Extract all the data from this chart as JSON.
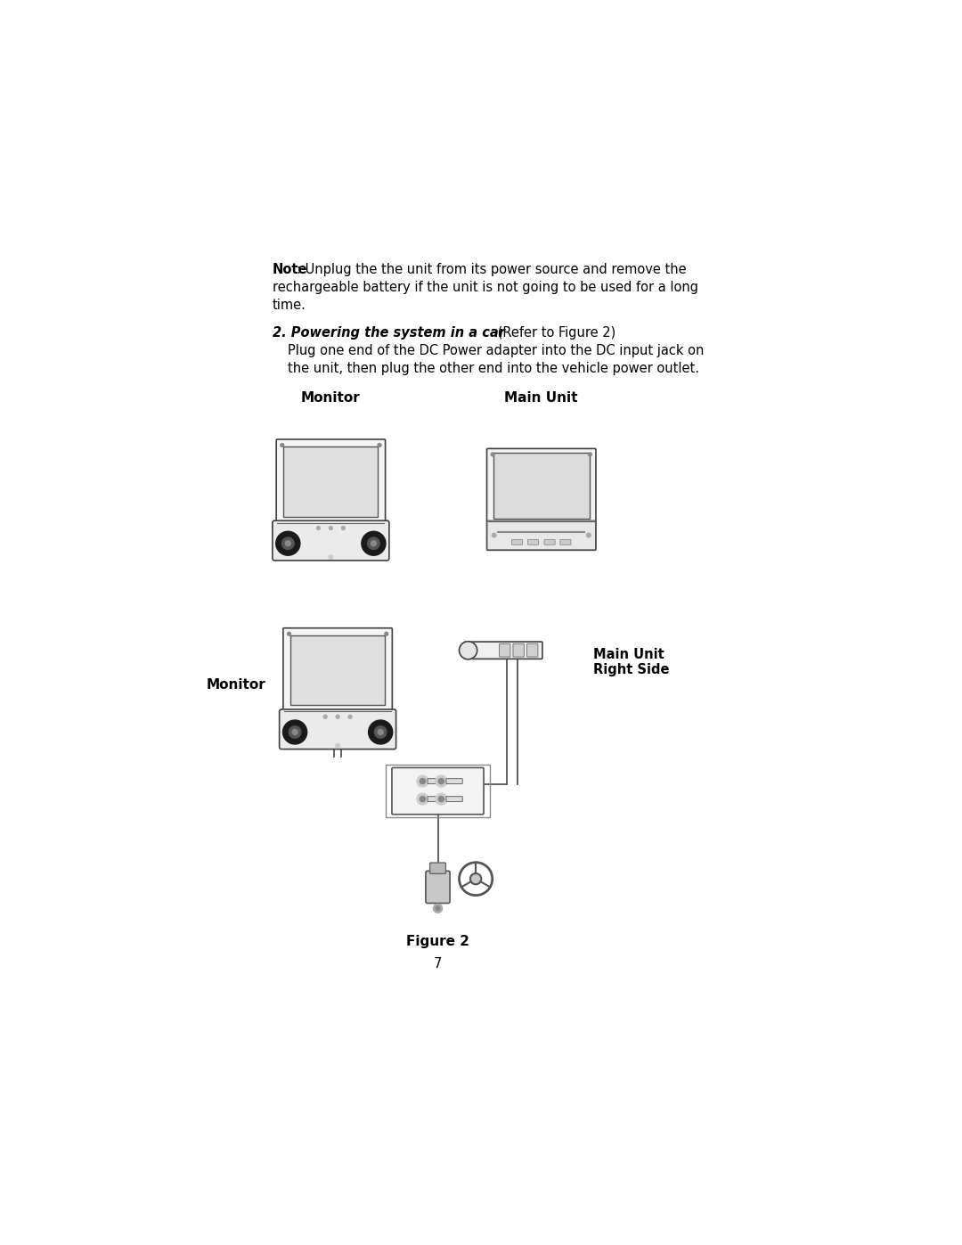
{
  "bg_color": "#ffffff",
  "page_width": 10.8,
  "page_height": 13.97,
  "note_bold": "Note",
  "note_rest": ": Unplug the the unit from its power source and remove the",
  "note_line2": "rechargeable battery if the unit is not going to be used for a long",
  "note_line3": "time.",
  "section_bold": "2. Powering the system in a car",
  "section_rest": " (Refer to Figure 2)",
  "body_line1": "Plug one end of the DC Power adapter into the DC input jack on",
  "body_line2": "the unit, then plug the other end into the vehicle power outlet.",
  "label_monitor_top": "Monitor",
  "label_mainunit_top": "Main Unit",
  "label_monitor_bottom": "Monitor",
  "label_mainunit_right": "Main Unit",
  "label_mainunit_right2": "Right Side",
  "figure_caption": "Figure 2",
  "page_number": "7",
  "text_color": "#000000"
}
